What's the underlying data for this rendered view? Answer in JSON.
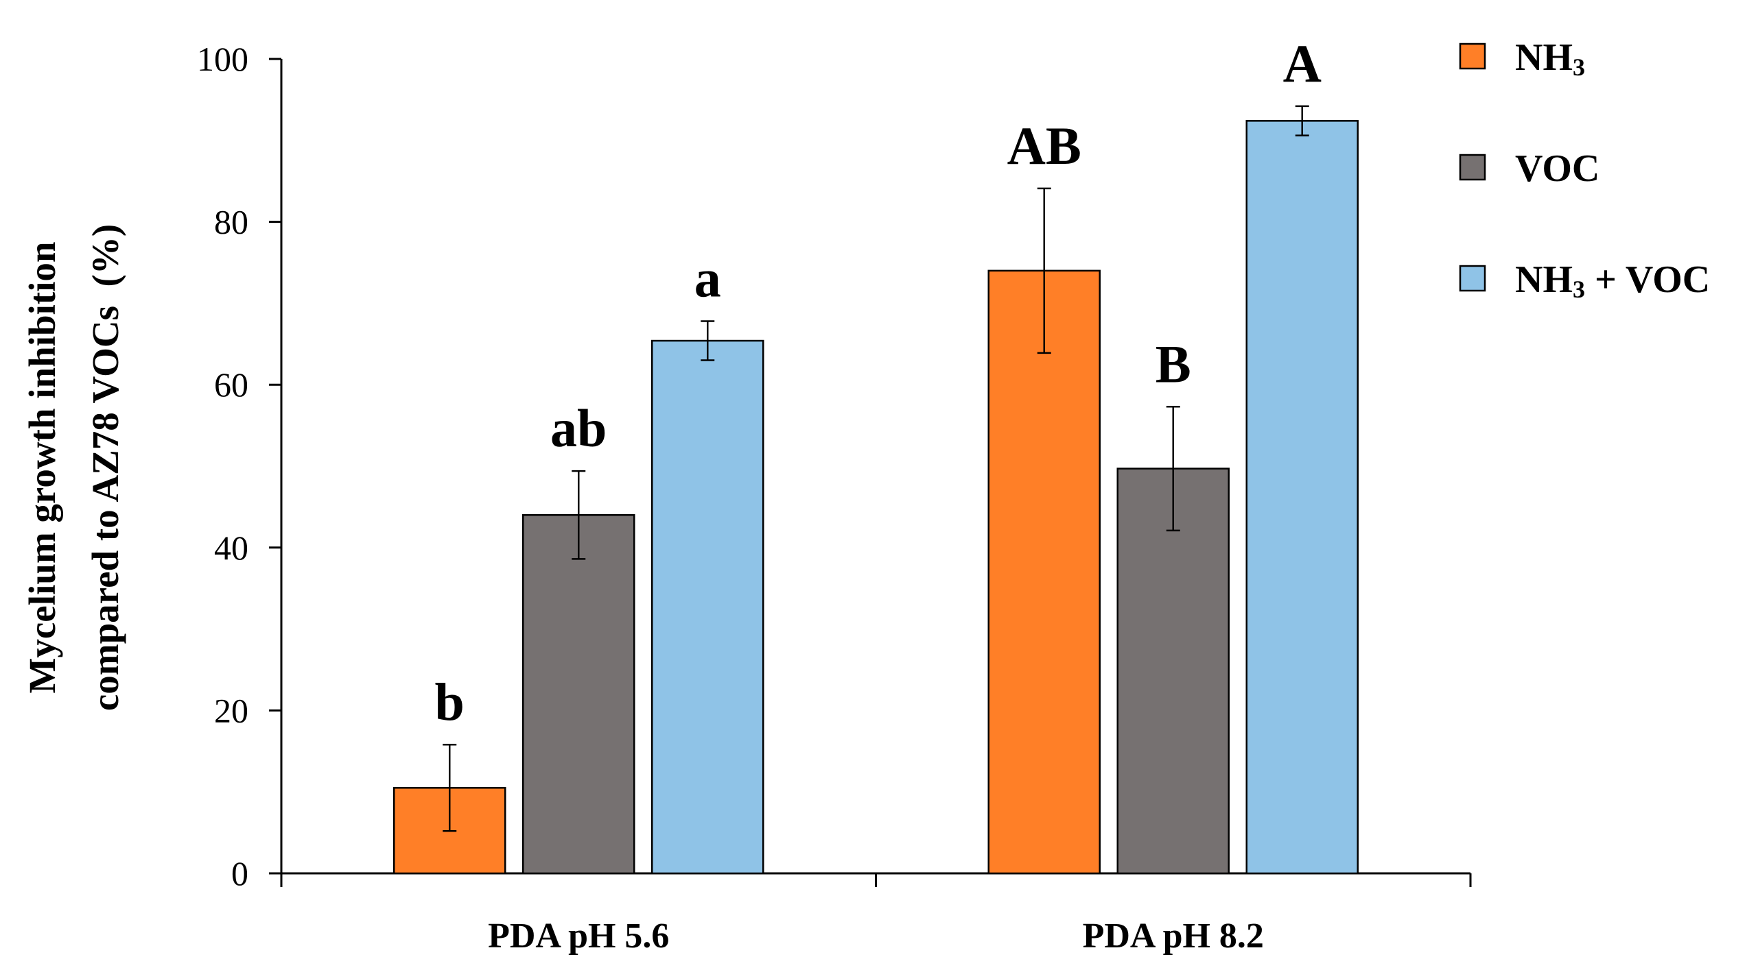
{
  "chart_data": {
    "type": "bar",
    "title": "",
    "xlabel": "",
    "ylabel_lines": [
      "Mycelium growth inhibition",
      "compared to AZ78 VOCs  (%)"
    ],
    "ylim": [
      0,
      100
    ],
    "yticks": [
      0,
      20,
      40,
      60,
      80,
      100
    ],
    "categories": [
      "PDA pH 5.6",
      "PDA pH 8.2"
    ],
    "series": [
      {
        "name": "NH3",
        "legend_main": "NH",
        "legend_sub": "3",
        "legend_suffix": "",
        "color": "#FF7F27",
        "values": [
          10.5,
          74.0
        ],
        "errors": [
          5.3,
          10.1
        ],
        "letters": [
          "b",
          "AB"
        ]
      },
      {
        "name": "VOC",
        "legend_main": "VOC",
        "legend_sub": "",
        "legend_suffix": "",
        "color": "#767171",
        "values": [
          44.0,
          49.7
        ],
        "errors": [
          5.4,
          7.6
        ],
        "letters": [
          "ab",
          "B"
        ]
      },
      {
        "name": "NH3 + VOC",
        "legend_main": "NH",
        "legend_sub": "3",
        "legend_suffix": " + VOC",
        "color": "#8FC3E7",
        "values": [
          65.4,
          92.4
        ],
        "errors": [
          2.4,
          1.8
        ],
        "letters": [
          "a",
          "A"
        ]
      }
    ],
    "legend_position": "top-right"
  }
}
